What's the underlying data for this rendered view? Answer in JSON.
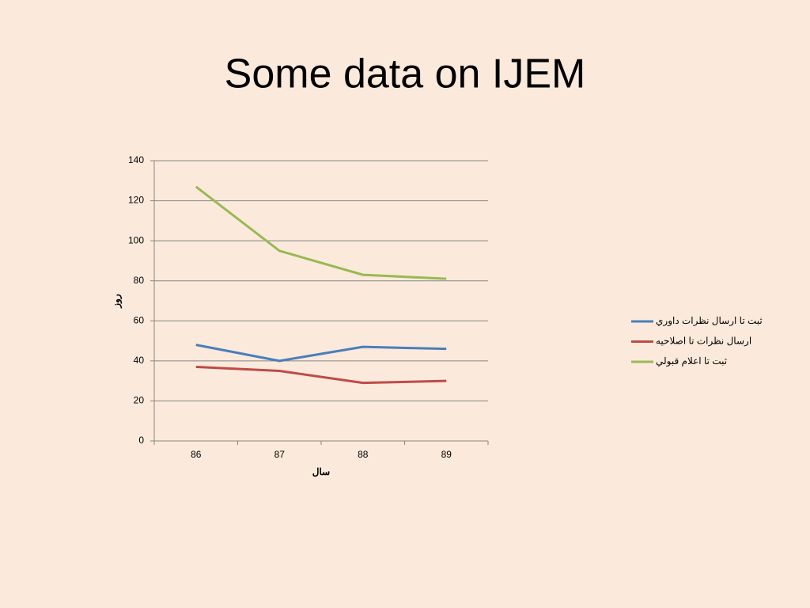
{
  "chart_data": {
    "type": "line",
    "title": "Some data on IJEM",
    "x_label": "سال",
    "y_label": "روز",
    "categories": [
      "86",
      "87",
      "88",
      "89"
    ],
    "series": [
      {
        "name": "ثبت تا ارسال نظرات داوري",
        "color": "#4a7ebb",
        "values": [
          48,
          40,
          47,
          46
        ]
      },
      {
        "name": "ارسال نظرات تا اصلاحيه",
        "color": "#be4b48",
        "values": [
          37,
          35,
          29,
          30
        ]
      },
      {
        "name": "ثبت تا اعلام قبولي",
        "color": "#98b954",
        "values": [
          127,
          95,
          83,
          81
        ]
      }
    ],
    "ylim": [
      0,
      140
    ],
    "yticks": [
      0,
      20,
      40,
      60,
      80,
      100,
      120,
      140
    ],
    "grid": true,
    "legend": "right"
  }
}
